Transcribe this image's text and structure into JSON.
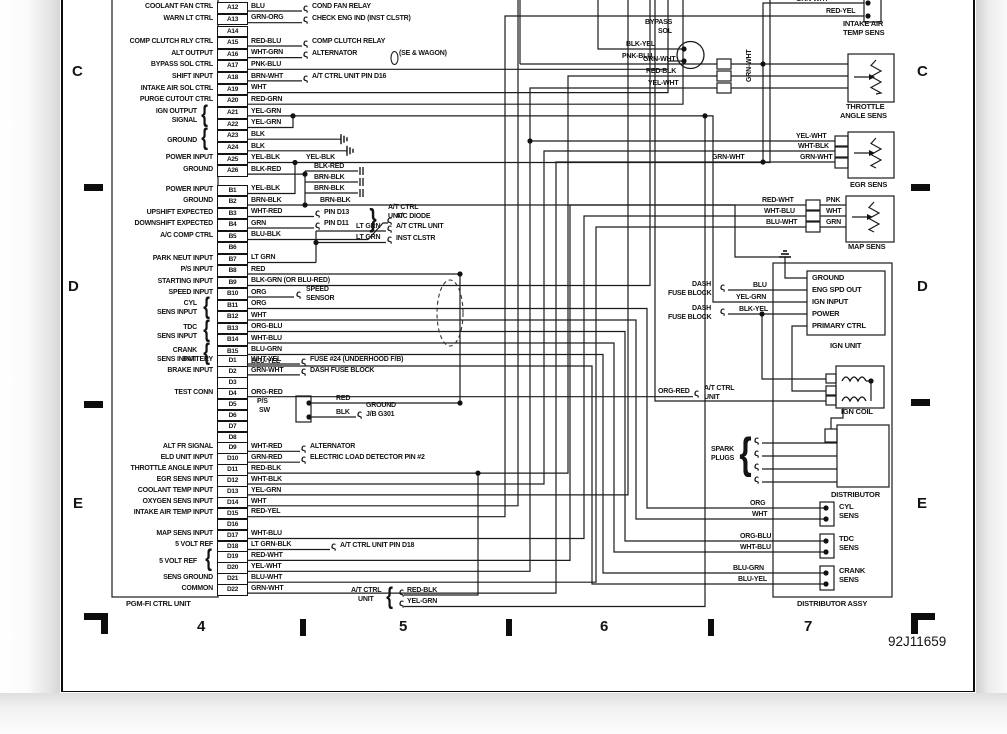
{
  "frame": {
    "section_letters": [
      "C",
      "D",
      "E"
    ],
    "grid_numbers": [
      "4",
      "5",
      "6",
      "7"
    ],
    "doc_number": "92J11659"
  },
  "connectors": {
    "a": {
      "rows": [
        {
          "pin": "A12",
          "label": "COOLANT FAN CTRL",
          "wire": "BLU"
        },
        {
          "pin": "A13",
          "label": "WARN LT CTRL",
          "wire": "GRN-ORG"
        },
        {
          "pin": "A14",
          "label": "",
          "wire": ""
        },
        {
          "pin": "A15",
          "label": "COMP CLUTCH RLY CTRL",
          "wire": "RED-BLU"
        },
        {
          "pin": "A16",
          "label": "ALT OUTPUT",
          "wire": "WHT-GRN"
        },
        {
          "pin": "A17",
          "label": "BYPASS SOL CTRL",
          "wire": "PNK-BLU"
        },
        {
          "pin": "A18",
          "label": "SHIFT INPUT",
          "wire": "BRN-WHT"
        },
        {
          "pin": "A19",
          "label": "INTAKE AIR SOL CTRL",
          "wire": "WHT"
        },
        {
          "pin": "A20",
          "label": "PURGE CUTOUT CTRL",
          "wire": "RED-GRN"
        },
        {
          "pin": "A21",
          "label": "",
          "wire": "YEL-GRN"
        },
        {
          "pin": "A22",
          "label": "",
          "wire": "YEL-GRN"
        },
        {
          "pin": "A23",
          "label": "",
          "wire": "BLK"
        },
        {
          "pin": "A24",
          "label": "",
          "wire": "BLK"
        },
        {
          "pin": "A25",
          "label": "POWER INPUT",
          "wire": "YEL-BLK"
        },
        {
          "pin": "A26",
          "label": "GROUND",
          "wire": "BLK-RED"
        }
      ],
      "groups": [
        {
          "lines": [
            "IGN OUTPUT",
            "SIGNAL"
          ]
        },
        {
          "lines": [
            "GROUND"
          ]
        }
      ]
    },
    "b": {
      "rows": [
        {
          "pin": "B1",
          "label": "POWER INPUT",
          "wire": "YEL-BLK"
        },
        {
          "pin": "B2",
          "label": "GROUND",
          "wire": "BRN-BLK"
        },
        {
          "pin": "B3",
          "label": "UPSHIFT EXPECTED",
          "wire": "WHT-RED"
        },
        {
          "pin": "B4",
          "label": "DOWNSHIFT EXPECTED",
          "wire": "GRN"
        },
        {
          "pin": "B5",
          "label": "A/C COMP CTRL",
          "wire": "BLU-BLK"
        },
        {
          "pin": "B6",
          "label": "",
          "wire": ""
        },
        {
          "pin": "B7",
          "label": "PARK NEUT INPUT",
          "wire": "LT GRN"
        },
        {
          "pin": "B8",
          "label": "P/S INPUT",
          "wire": "RED"
        },
        {
          "pin": "B9",
          "label": "STARTING INPUT",
          "wire": "BLK-GRN (OR BLU-RED)"
        },
        {
          "pin": "B10",
          "label": "SPEED INPUT",
          "wire": "ORG"
        },
        {
          "pin": "B11",
          "label": "",
          "wire": "ORG"
        },
        {
          "pin": "B12",
          "label": "",
          "wire": "WHT"
        },
        {
          "pin": "B13",
          "label": "",
          "wire": "ORG-BLU"
        },
        {
          "pin": "B14",
          "label": "",
          "wire": "WHT-BLU"
        },
        {
          "pin": "B15",
          "label": "",
          "wire": "BLU-GRN"
        },
        {
          "pin": "B16",
          "label": "",
          "wire": "BLU-YEL"
        }
      ],
      "groups": [
        {
          "lines": [
            "CYL",
            "SENS INPUT"
          ]
        },
        {
          "lines": [
            "TDC",
            "SENS INPUT"
          ]
        },
        {
          "lines": [
            "CRANK",
            "SENS INPUT"
          ]
        }
      ]
    },
    "d": {
      "rows": [
        {
          "pin": "D1",
          "label": "BATTERY",
          "wire": "WHT-YEL"
        },
        {
          "pin": "D2",
          "label": "BRAKE INPUT",
          "wire": "GRN-WHT"
        },
        {
          "pin": "D3",
          "label": "",
          "wire": ""
        },
        {
          "pin": "D4",
          "label": "TEST CONN",
          "wire": "ORG-RED"
        },
        {
          "pin": "D5",
          "label": "",
          "wire": ""
        },
        {
          "pin": "D6",
          "label": "",
          "wire": ""
        },
        {
          "pin": "D7",
          "label": "",
          "wire": ""
        },
        {
          "pin": "D8",
          "label": "",
          "wire": ""
        },
        {
          "pin": "D9",
          "label": "ALT FR SIGNAL",
          "wire": "WHT-RED"
        },
        {
          "pin": "D10",
          "label": "ELD UNIT INPUT",
          "wire": "GRN-RED"
        },
        {
          "pin": "D11",
          "label": "THROTTLE ANGLE INPUT",
          "wire": "RED-BLK"
        },
        {
          "pin": "D12",
          "label": "EGR SENS INPUT",
          "wire": "WHT-BLK"
        },
        {
          "pin": "D13",
          "label": "COOLANT TEMP INPUT",
          "wire": "YEL-GRN"
        },
        {
          "pin": "D14",
          "label": "OXYGEN SENS INPUT",
          "wire": "WHT"
        },
        {
          "pin": "D15",
          "label": "INTAKE AIR TEMP INPUT",
          "wire": "RED-YEL"
        },
        {
          "pin": "D16",
          "label": "",
          "wire": ""
        },
        {
          "pin": "D17",
          "label": "MAP SENS INPUT",
          "wire": "WHT-BLU"
        },
        {
          "pin": "D18",
          "label": "5 VOLT REF",
          "wire": "LT GRN-BLK"
        },
        {
          "pin": "D19",
          "label": "",
          "wire": "RED-WHT"
        },
        {
          "pin": "D20",
          "label": "",
          "wire": "YEL-WHT"
        },
        {
          "pin": "D21",
          "label": "SENS GROUND",
          "wire": "BLU-WHT"
        },
        {
          "pin": "D22",
          "label": "COMMON",
          "wire": "GRN-WHT"
        }
      ],
      "groups": [
        {
          "lines": [
            "5 VOLT REF"
          ]
        }
      ]
    }
  },
  "callouts": [
    {
      "lines": [
        "COND FAN RELAY"
      ]
    },
    {
      "lines": [
        "CHECK ENG IND (INST CLSTR)"
      ]
    },
    {
      "lines": [
        "COMP CLUTCH RELAY"
      ]
    },
    {
      "lines": [
        "ALTERNATOR"
      ]
    },
    {
      "lines": [
        "(SE & WAGON)"
      ]
    },
    {
      "lines": [
        "A/T CTRL UNIT PIN D16"
      ]
    },
    {
      "lines": [
        "PIN D13"
      ]
    },
    {
      "lines": [
        "PIN D11"
      ]
    },
    {
      "lines": [
        "A/T CTRL",
        "UNIT"
      ]
    },
    {
      "lines": [
        "A/C DIODE"
      ]
    },
    {
      "lines": [
        "A/T CTRL UNIT"
      ]
    },
    {
      "lines": [
        "INST CLSTR"
      ]
    },
    {
      "lines": [
        "SPEED",
        "SENSOR"
      ]
    },
    {
      "lines": [
        "FUSE #24 (UNDERHOOD F/B)"
      ]
    },
    {
      "lines": [
        "DASH FUSE BLOCK"
      ]
    },
    {
      "lines": [
        "GROUND",
        "J/B G301"
      ]
    },
    {
      "lines": [
        "ALTERNATOR"
      ]
    },
    {
      "lines": [
        "ELECTRIC LOAD DETECTOR PIN #2"
      ]
    },
    {
      "lines": [
        "A/T CTRL UNIT PIN D18"
      ]
    },
    {
      "lines": [
        "A/T CTRL",
        "UNIT"
      ]
    },
    {
      "lines": [
        "DASH",
        "FUSE BLOCK"
      ]
    },
    {
      "lines": [
        "DASH",
        "FUSE BLOCK"
      ]
    },
    {
      "lines": [
        "BYPASS",
        "SOL"
      ]
    },
    {
      "lines": [
        "SPARK",
        "PLUGS"
      ]
    },
    {
      "lines": [
        "A/T CTRL",
        "UNIT"
      ]
    },
    {
      "lines": [
        "P/S",
        "SW"
      ]
    }
  ],
  "wire_tags": [
    "YEL-BLK",
    "BLK-RED",
    "BRN-BLK",
    "BRN-BLK",
    "BRN-BLK",
    "LT GRN",
    "LT GRN",
    "RED",
    "BLK",
    "ORG-RED",
    "BLU",
    "YEL-GRN",
    "BLK-YEL",
    "BLK-YEL",
    "PNK-BLU",
    "GRN-WHT",
    "GRN-WHT",
    "RED-YEL",
    "GRN-WHT",
    "RED-BLK",
    "YEL-WHT",
    "YEL-WHT",
    "WHT-BLK",
    "GRN-WHT",
    "GRN-WHT",
    "RED-WHT",
    "WHT-BLU",
    "BLU-WHT",
    "PNK",
    "WHT",
    "GRN",
    "ORG",
    "WHT",
    "ORG-BLU",
    "WHT-BLU",
    "BLU-GRN",
    "BLU-YEL",
    "RED-BLK",
    "YEL-GRN"
  ],
  "components": {
    "intake_air_temp_sens": {
      "name": [
        "INTAKE AIR",
        "TEMP SENS"
      ]
    },
    "throttle_angle_sens": {
      "name": [
        "THROTTLE",
        "ANGLE SENS"
      ]
    },
    "egr_sens": {
      "name": [
        "EGR SENS"
      ]
    },
    "map_sens": {
      "name": [
        "MAP SENS"
      ]
    },
    "ign_unit": {
      "name": [
        "IGN UNIT"
      ],
      "pins": [
        "GROUND",
        "ENG SPD OUT",
        "IGN INPUT",
        "POWER",
        "PRIMARY CTRL"
      ]
    },
    "ign_coil": {
      "name": [
        "IGN COIL"
      ]
    },
    "distributor": {
      "name": [
        "DISTRIBUTOR"
      ]
    },
    "cyl_sens": {
      "name": [
        "CYL",
        "SENS"
      ]
    },
    "tdc_sens": {
      "name": [
        "TDC",
        "SENS"
      ]
    },
    "crank_sens": {
      "name": [
        "CRANK",
        "SENS"
      ]
    },
    "distributor_assy": {
      "name": [
        "DISTRIBUTOR ASSY"
      ]
    },
    "pgm_fi_ctrl_unit": {
      "name": [
        "PGM-FI CTRL UNIT"
      ]
    }
  }
}
